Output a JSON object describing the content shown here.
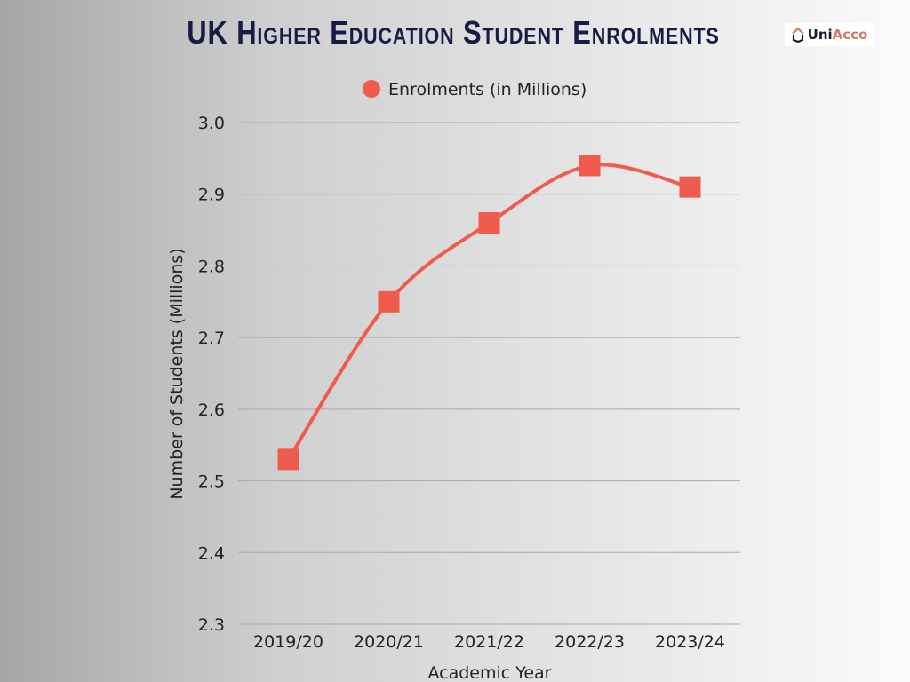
{
  "logo": {
    "part1": "Uni",
    "part2": "Acco"
  },
  "chart_data": {
    "type": "line",
    "title": "UK Higher Education Student Enrolments",
    "legend": {
      "label": "Enrolments (in Millions)",
      "position": "top"
    },
    "xlabel": "Academic Year",
    "ylabel": "Number of Students (Millions)",
    "categories": [
      "2019/20",
      "2020/21",
      "2021/22",
      "2022/23",
      "2023/24"
    ],
    "series": [
      {
        "name": "Enrolments (in Millions)",
        "values": [
          2.53,
          2.75,
          2.86,
          2.94,
          2.91
        ]
      }
    ],
    "ylim": [
      2.3,
      3.0
    ],
    "yticks": [
      "2.3",
      "2.4",
      "2.5",
      "2.6",
      "2.7",
      "2.8",
      "2.9",
      "3.0"
    ],
    "grid": true,
    "color": "#ef5b4c"
  }
}
